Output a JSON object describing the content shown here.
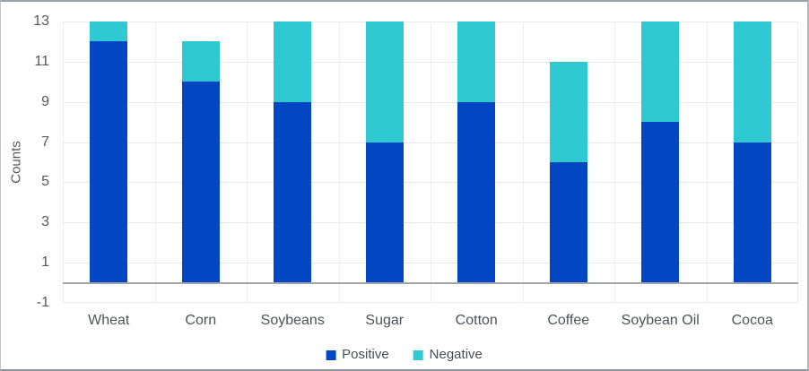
{
  "chart_data": {
    "type": "bar",
    "stacked": true,
    "orientation": "vertical",
    "categories": [
      "Wheat",
      "Corn",
      "Soybeans",
      "Sugar",
      "Cotton",
      "Coffee",
      "Soybean Oil",
      "Cocoa"
    ],
    "series": [
      {
        "name": "Positive",
        "color": "#0346C3",
        "values": [
          12,
          10,
          9,
          7,
          9,
          6,
          8,
          7
        ]
      },
      {
        "name": "Negative",
        "color": "#2FC9D1",
        "values": [
          1,
          2,
          4,
          6,
          4,
          5,
          5,
          6
        ]
      }
    ],
    "title": "",
    "xlabel": "",
    "ylabel": "Counts",
    "ylim": [
      -1,
      13
    ],
    "yticks": [
      -1,
      1,
      3,
      5,
      7,
      9,
      11,
      13
    ],
    "grid": true,
    "zero_baseline": true,
    "legend_position": "bottom"
  },
  "colors": {
    "positive": "#0346C3",
    "negative": "#2FC9D1",
    "gridline": "#E7E9EB",
    "zero_line": "#A2A6AA",
    "axis_text": "#54585E",
    "figure_border": "#9BA2AA",
    "background": "#FFFFFF"
  }
}
